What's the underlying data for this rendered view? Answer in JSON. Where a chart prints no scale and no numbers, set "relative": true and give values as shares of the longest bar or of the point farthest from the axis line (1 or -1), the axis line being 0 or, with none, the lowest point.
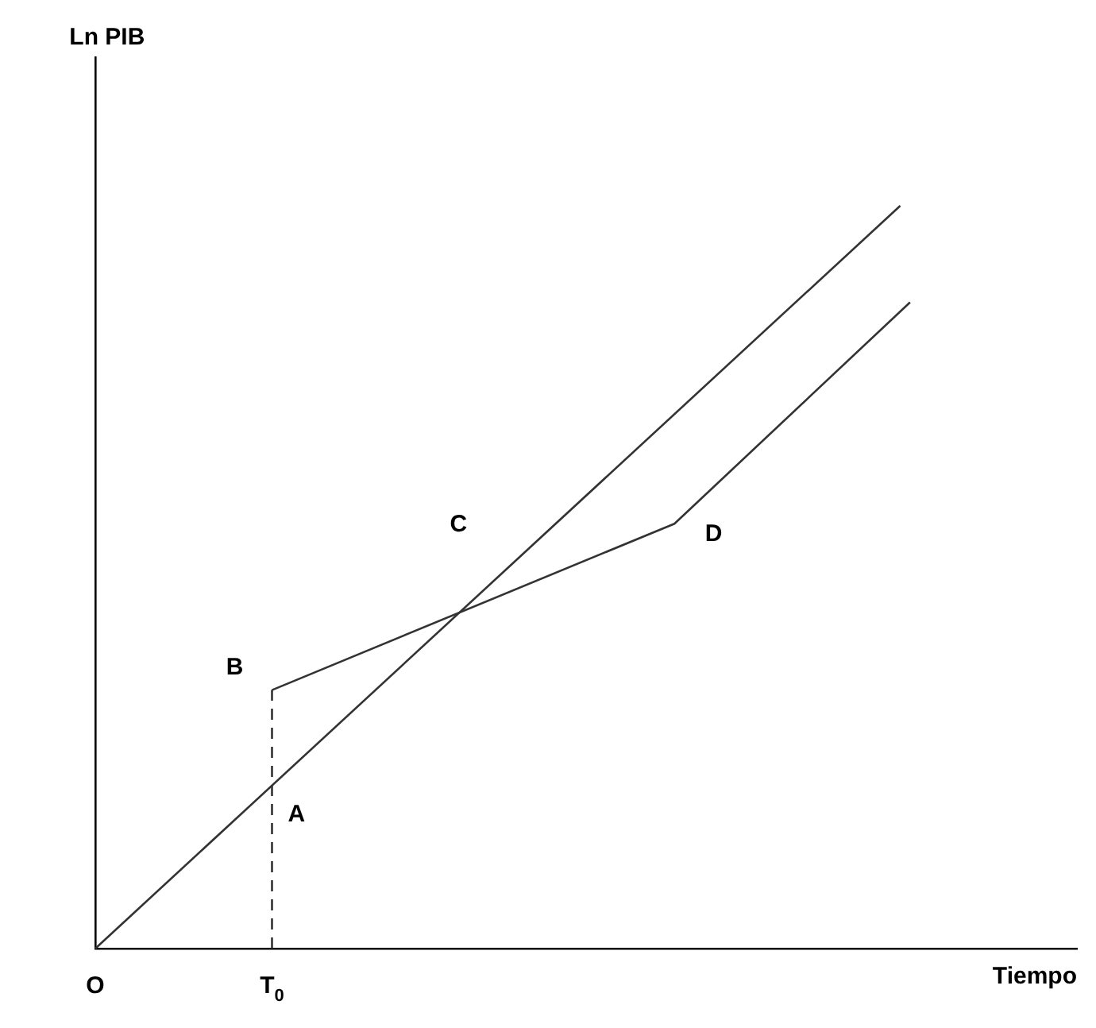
{
  "chart_data": {
    "type": "line",
    "xlabel": "Tiempo",
    "relative": true,
    "legend": false,
    "marker": "none",
    "tick_labels": "x",
    "categories": [
      "O",
      null,
      null,
      null,
      null,
      null,
      null,
      null,
      null,
      null,
      null,
      null,
      null,
      null,
      null,
      null,
      null,
      null,
      "T$_{0}$",
      null,
      null,
      null,
      null,
      null,
      null,
      null,
      null,
      null,
      null,
      null,
      null,
      null,
      null,
      null,
      null,
      null,
      null,
      null,
      null,
      null,
      null,
      null,
      null,
      null,
      null,
      null,
      null,
      null,
      null,
      null,
      null,
      null,
      null,
      null,
      null,
      null,
      null,
      null,
      null,
      null,
      null,
      null,
      null,
      null,
      null,
      null,
      null,
      null,
      null,
      null,
      null,
      null,
      null,
      null,
      null,
      null,
      null,
      null,
      null,
      null,
      null,
      null,
      null,
      null,
      null,
      null,
      null,
      null,
      null,
      null,
      null,
      null,
      null,
      null,
      null,
      null,
      null,
      null,
      null,
      null,
      null
    ],
    "series": [
      {
        "color": "#333333",
        "values": [
          0,
          null,
          null,
          null,
          null,
          null,
          null,
          null,
          null,
          null,
          null,
          null,
          null,
          null,
          null,
          null,
          null,
          null,
          null,
          null,
          null,
          null,
          null,
          null,
          null,
          null,
          null,
          null,
          null,
          null,
          null,
          null,
          null,
          null,
          null,
          null,
          null,
          null,
          null,
          null,
          null,
          null,
          null,
          null,
          null,
          null,
          null,
          null,
          null,
          null,
          null,
          null,
          null,
          null,
          null,
          null,
          null,
          null,
          null,
          null,
          null,
          null,
          null,
          null,
          null,
          null,
          null,
          null,
          null,
          null,
          null,
          null,
          null,
          null,
          null,
          null,
          null,
          null,
          null,
          null,
          null,
          null,
          1,
          null,
          null,
          null,
          null,
          null,
          null,
          null,
          null,
          null,
          null,
          null,
          null,
          null,
          null,
          null,
          null,
          null,
          null
        ]
      },
      {
        "color": "#333333",
        "values": [
          null,
          null,
          null,
          null,
          null,
          null,
          null,
          null,
          null,
          null,
          null,
          null,
          null,
          null,
          null,
          null,
          null,
          null,
          0.348,
          null,
          null,
          null,
          null,
          null,
          null,
          null,
          null,
          null,
          null,
          null,
          null,
          null,
          null,
          null,
          null,
          null,
          null,
          null,
          null,
          null,
          null,
          null,
          null,
          null,
          null,
          null,
          null,
          null,
          null,
          null,
          null,
          null,
          null,
          null,
          null,
          null,
          null,
          null,
          null,
          0.572,
          null,
          null,
          null,
          null,
          null,
          null,
          null,
          null,
          null,
          null,
          null,
          null,
          null,
          null,
          null,
          null,
          null,
          null,
          null,
          null,
          null,
          null,
          null,
          0.87,
          null,
          null,
          null,
          null,
          null,
          null,
          null,
          null,
          null,
          null,
          null,
          null,
          null,
          null,
          null,
          null,
          null
        ]
      }
    ],
    "ref_lines": [
      {
        "axis": "x",
        "value": "T$_{0}$",
        "line_style": "dashed",
        "color": "#333333"
      }
    ],
    "annotations": [
      {
        "text": "A",
        "x": "T$_{0}$",
        "y": 0.218
      },
      {
        "text": "B",
        "x": "T$_{0}$",
        "y": 0.348
      },
      "C",
      "D",
      "Ln PIB"
    ]
  }
}
